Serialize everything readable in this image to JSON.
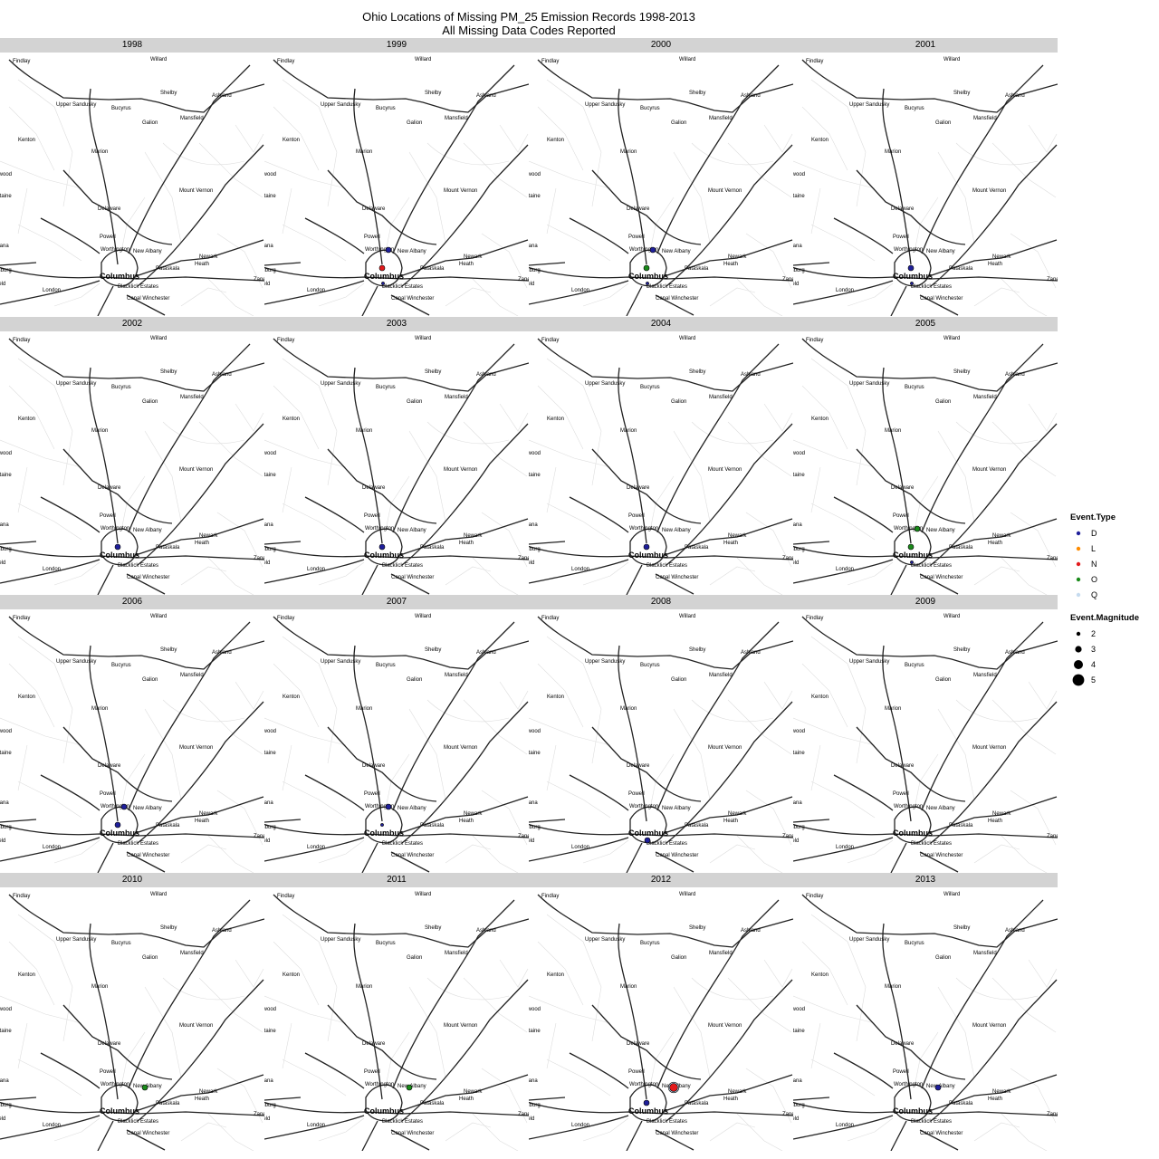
{
  "title": {
    "line1": "Ohio Locations of Missing PM_25 Emission Records 1998-2013",
    "line2": "All Missing Data Codes Reported"
  },
  "map": {
    "cities": [
      {
        "name": "Findlay",
        "class": "normal"
      },
      {
        "name": "Willard",
        "class": "normal"
      },
      {
        "name": "Shelby",
        "class": "normal"
      },
      {
        "name": "Ashland",
        "class": "normal"
      },
      {
        "name": "Upper Sandusky",
        "class": "normal"
      },
      {
        "name": "Bucyrus",
        "class": "normal"
      },
      {
        "name": "Galion",
        "class": "normal"
      },
      {
        "name": "Mansfield",
        "class": "normal"
      },
      {
        "name": "Kenton",
        "class": "normal"
      },
      {
        "name": "Marion",
        "class": "normal"
      },
      {
        "name": "Northwood",
        "class": "normal"
      },
      {
        "name": "Mount Vernon",
        "class": "normal"
      },
      {
        "name": "Bellefontaine",
        "class": "normal"
      },
      {
        "name": "Delaware",
        "class": "normal"
      },
      {
        "name": "Powell",
        "class": "normal"
      },
      {
        "name": "Urbana",
        "class": "normal"
      },
      {
        "name": "Worthington",
        "class": "normal"
      },
      {
        "name": "New Albany",
        "class": "normal"
      },
      {
        "name": "Newark",
        "class": "normal"
      },
      {
        "name": "Heath",
        "class": "normal"
      },
      {
        "name": "Pataskala",
        "class": "normal"
      },
      {
        "name": "Columbus",
        "class": "major"
      },
      {
        "name": "Mechanicsburg",
        "class": "normal"
      },
      {
        "name": "Springfield",
        "class": "normal"
      },
      {
        "name": "London",
        "class": "normal"
      },
      {
        "name": "Blacklick Estates",
        "class": "normal"
      },
      {
        "name": "Canal Winchester",
        "class": "normal"
      },
      {
        "name": "Zanesville",
        "class": "normal"
      }
    ]
  },
  "panels": [
    {
      "year": "1998",
      "events": []
    },
    {
      "year": "1999",
      "events": [
        {
          "site": "north",
          "type": "D",
          "magnitude": 3
        },
        {
          "site": "central",
          "type": "N",
          "magnitude": 3
        },
        {
          "site": "south",
          "type": "D",
          "magnitude": 2
        }
      ]
    },
    {
      "year": "2000",
      "events": [
        {
          "site": "north",
          "type": "D",
          "magnitude": 3
        },
        {
          "site": "central",
          "type": "O",
          "magnitude": 3
        },
        {
          "site": "south",
          "type": "D",
          "magnitude": 2
        }
      ]
    },
    {
      "year": "2001",
      "events": [
        {
          "site": "central",
          "type": "D",
          "magnitude": 3
        },
        {
          "site": "south",
          "type": "D",
          "magnitude": 2
        }
      ]
    },
    {
      "year": "2002",
      "events": [
        {
          "site": "central",
          "type": "D",
          "magnitude": 3
        }
      ]
    },
    {
      "year": "2003",
      "events": [
        {
          "site": "central",
          "type": "D",
          "magnitude": 3
        }
      ]
    },
    {
      "year": "2004",
      "events": [
        {
          "site": "central",
          "type": "D",
          "magnitude": 3
        }
      ]
    },
    {
      "year": "2005",
      "events": [
        {
          "site": "north",
          "type": "O",
          "magnitude": 3
        },
        {
          "site": "central",
          "type": "O",
          "magnitude": 3
        },
        {
          "site": "south",
          "type": "D",
          "magnitude": 2
        }
      ]
    },
    {
      "year": "2006",
      "events": [
        {
          "site": "north",
          "type": "D",
          "magnitude": 3
        },
        {
          "site": "central",
          "type": "D",
          "magnitude": 3
        }
      ]
    },
    {
      "year": "2007",
      "events": [
        {
          "site": "north",
          "type": "D",
          "magnitude": 3
        },
        {
          "site": "central",
          "type": "D",
          "magnitude": 2
        }
      ]
    },
    {
      "year": "2008",
      "events": [
        {
          "site": "south",
          "type": "D",
          "magnitude": 3
        }
      ]
    },
    {
      "year": "2009",
      "events": []
    },
    {
      "year": "2010",
      "events": [
        {
          "site": "east",
          "type": "O",
          "magnitude": 3
        }
      ]
    },
    {
      "year": "2011",
      "events": [
        {
          "site": "east",
          "type": "O",
          "magnitude": 3
        }
      ]
    },
    {
      "year": "2012",
      "events": [
        {
          "site": "east",
          "type": "Q",
          "magnitude": 5
        },
        {
          "site": "east",
          "type": "N",
          "magnitude": 4
        },
        {
          "site": "central",
          "type": "D",
          "magnitude": 3
        }
      ]
    },
    {
      "year": "2013",
      "events": [
        {
          "site": "east",
          "type": "D",
          "magnitude": 3
        }
      ]
    }
  ],
  "legend": {
    "type_title": "Event.Type",
    "types": [
      {
        "label": "D",
        "color": "#1f1f9a"
      },
      {
        "label": "L",
        "color": "#ff8c00"
      },
      {
        "label": "N",
        "color": "#e31a1c"
      },
      {
        "label": "O",
        "color": "#1a8a1a"
      },
      {
        "label": "Q",
        "color": "#c6dbef"
      }
    ],
    "magnitude_title": "Event.Magnitude",
    "magnitudes": [
      {
        "label": "2",
        "value": 2
      },
      {
        "label": "3",
        "value": 3
      },
      {
        "label": "4",
        "value": 4
      },
      {
        "label": "5",
        "value": 5
      }
    ]
  }
}
